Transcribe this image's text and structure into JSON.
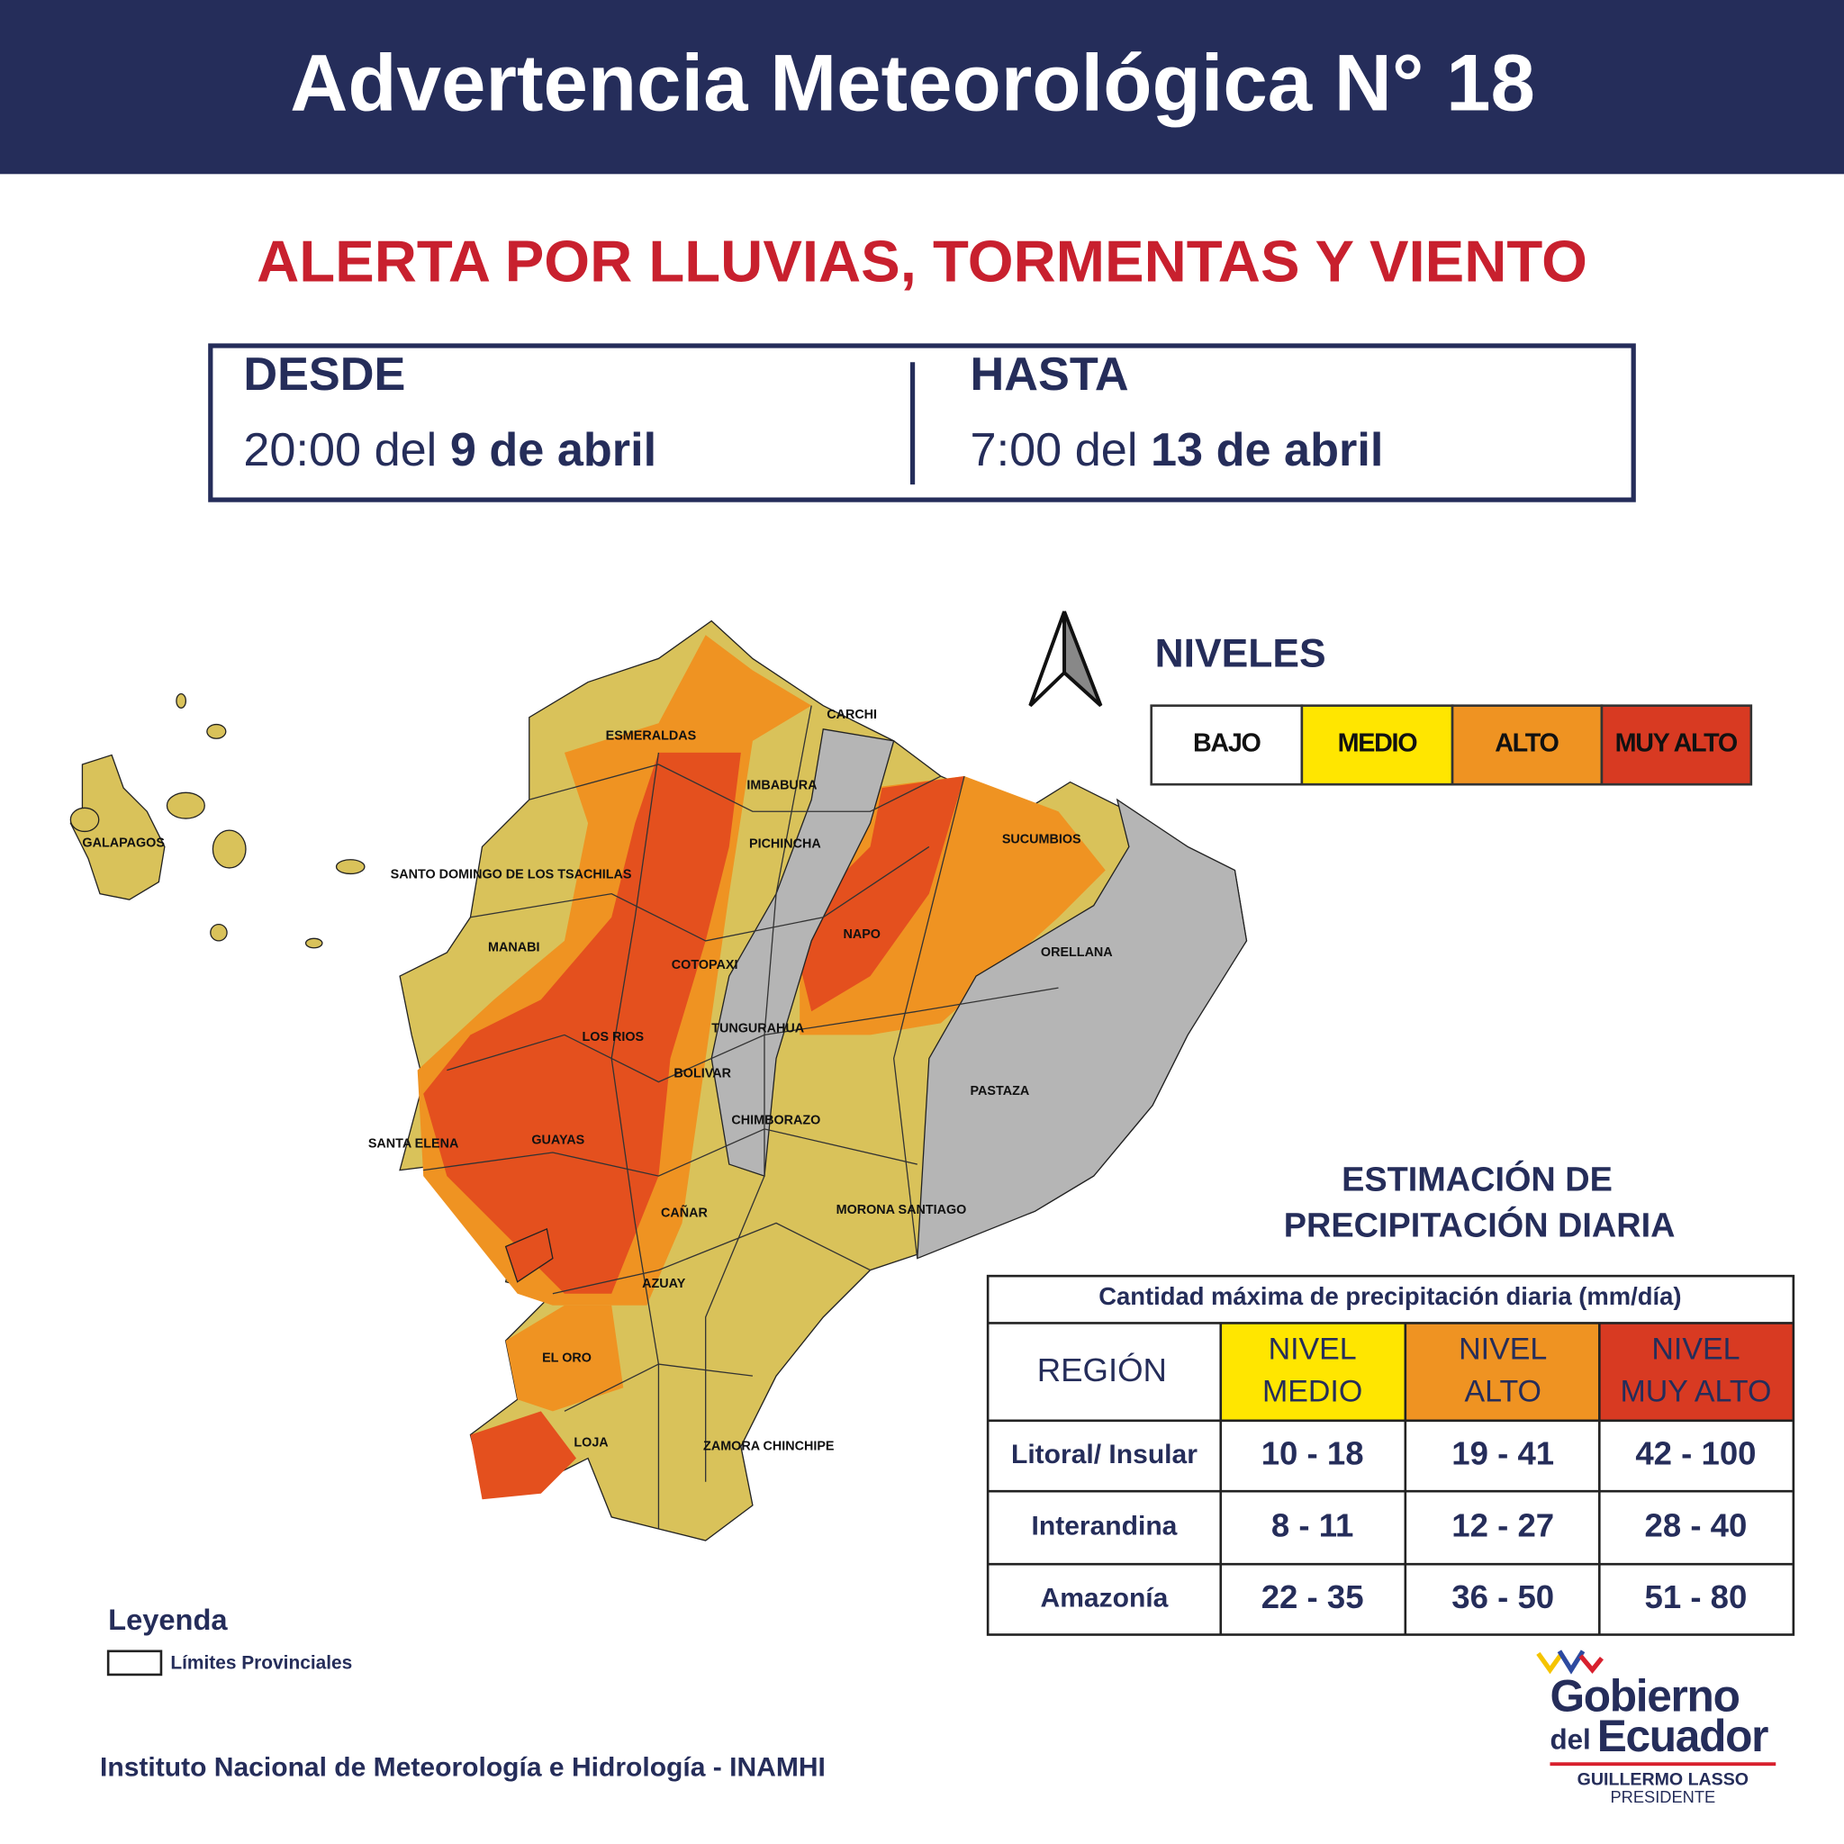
{
  "header": {
    "title": "Advertencia Meteorológica N° 18"
  },
  "alert": {
    "title": "ALERTA POR LLUVIAS, TORMENTAS Y VIENTO"
  },
  "period": {
    "from": {
      "label": "DESDE",
      "time": "20:00 del",
      "date": "9 de abril"
    },
    "to": {
      "label": "HASTA",
      "time": "7:00 del",
      "date": "13 de abril"
    }
  },
  "levels": {
    "title": "NIVELES",
    "items": [
      "BAJO",
      "MEDIO",
      "ALTO",
      "MUY ALTO"
    ]
  },
  "map": {
    "labels": [
      "GALAPAGOS",
      "ESMERALDAS",
      "CARCHI",
      "IMBABURA",
      "PICHINCHA",
      "SUCUMBIOS",
      "SANTO DOMINGO DE LOS TSACHILAS",
      "MANABI",
      "NAPO",
      "ORELLANA",
      "COTOPAXI",
      "TUNGURAHUA",
      "LOS RIOS",
      "BOLIVAR",
      "PASTAZA",
      "CHIMBORAZO",
      "SANTA ELENA",
      "GUAYAS",
      "CAÑAR",
      "MORONA SANTIAGO",
      "AZUAY",
      "EL ORO",
      "LOJA",
      "ZAMORA CHINCHIPE"
    ]
  },
  "estimate": {
    "title": [
      "ESTIMACIÓN DE",
      "PRECIPITACIÓN DIARIA"
    ],
    "table": {
      "caption": "Cantidad máxima de precipitación diaria (mm/día)",
      "header": [
        "REGIÓN",
        [
          "NIVEL",
          "MEDIO"
        ],
        [
          "NIVEL",
          "ALTO"
        ],
        [
          "NIVEL",
          "MUY ALTO"
        ]
      ],
      "rows": [
        [
          "Litoral/ Insular",
          "10 - 18",
          "19 - 41",
          "42 - 100"
        ],
        [
          "Interandina",
          "8 - 11",
          "12 - 27",
          "28 - 40"
        ],
        [
          "Amazonía",
          "22 - 35",
          "36 - 50",
          "51 - 80"
        ]
      ]
    }
  },
  "legend": {
    "title": "Leyenda",
    "item": "Límites Provinciales"
  },
  "footer": {
    "source": "Instituto Nacional de Meteorología e Hidrología - INAMHI",
    "logo": {
      "line1": "Gobierno",
      "del": "del",
      "line2": "Ecuador",
      "name": "GUILLERMO LASSO",
      "role": "PRESIDENTE"
    }
  }
}
